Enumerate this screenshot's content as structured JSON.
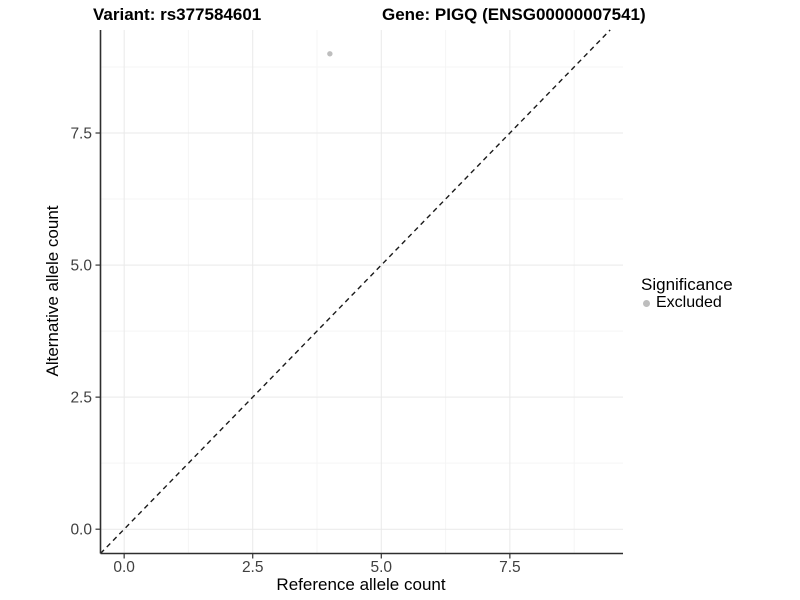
{
  "colors": {
    "background": "#ffffff",
    "point": "#bebebe",
    "grid_major": "#e9e9e9",
    "grid_minor": "#f5f5f5",
    "axis_line": "#2e2e2e",
    "tick_mark": "#333333",
    "tick_label": "#404040",
    "text": "#000000",
    "reference_line": "#1a1a1a"
  },
  "chart_data": {
    "type": "scatter",
    "title_left": "Variant: rs377584601",
    "title_right": "Gene: PIGQ (ENSG00000007541)",
    "xlabel": "Reference allele count",
    "ylabel": "Alternative allele count",
    "x_ticks": [
      0.0,
      2.5,
      5.0,
      7.5
    ],
    "y_ticks": [
      0.0,
      2.5,
      5.0,
      7.5
    ],
    "x_minor_ticks": [
      1.25,
      3.75,
      6.25,
      8.75
    ],
    "y_minor_ticks": [
      1.25,
      3.75,
      6.25,
      8.75
    ],
    "xlim": [
      -0.46,
      9.7
    ],
    "ylim": [
      -0.46,
      9.45
    ],
    "grid": true,
    "points": [
      {
        "x": 4.0,
        "y": 9.0,
        "series": "Excluded"
      }
    ],
    "reference_line": {
      "type": "identity",
      "style": "dashed"
    },
    "point_color": "#bebebe",
    "legend": {
      "title": "Significance",
      "position": "right",
      "entries": [
        {
          "label": "Excluded",
          "color": "#bebebe",
          "marker": "circle"
        }
      ]
    }
  }
}
